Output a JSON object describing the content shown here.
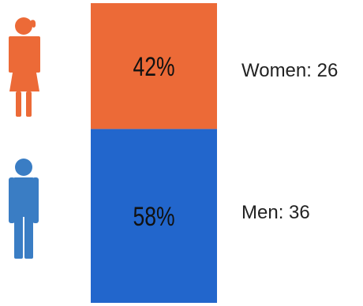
{
  "chart_data": {
    "type": "bar",
    "stacked": true,
    "orientation": "vertical",
    "categories": [
      "Women",
      "Men"
    ],
    "series": [
      {
        "label": "Women: 26",
        "percent_label": "42%",
        "count": 26,
        "percent": 42,
        "color": "#ec6a37"
      },
      {
        "label": "Men: 36",
        "percent_label": "58%",
        "count": 36,
        "percent": 58,
        "color": "#2266cc"
      }
    ],
    "icons": [
      {
        "name": "female-figure-icon",
        "color": "#ec6a37"
      },
      {
        "name": "male-figure-icon",
        "color": "#3a7dc4"
      }
    ],
    "grid": false,
    "legend": "none"
  }
}
